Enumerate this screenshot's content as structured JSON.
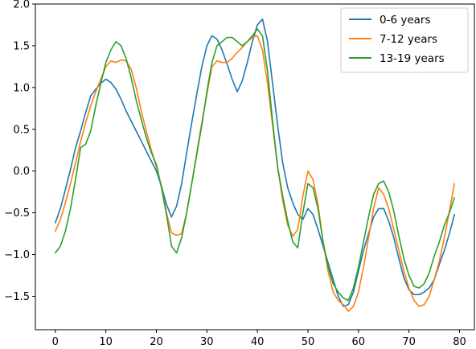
{
  "chart_data": {
    "type": "line",
    "title": "",
    "xlabel": "",
    "ylabel": "",
    "xlim": [
      -3.95,
      82.95
    ],
    "ylim": [
      -1.9,
      2.0
    ],
    "xticks": [
      0,
      10,
      20,
      30,
      40,
      50,
      60,
      70,
      80
    ],
    "yticks": [
      -1.5,
      -1.0,
      -0.5,
      0.0,
      0.5,
      1.0,
      1.5,
      2.0
    ],
    "xtick_labels": [
      "0",
      "10",
      "20",
      "30",
      "40",
      "50",
      "60",
      "70",
      "80"
    ],
    "ytick_labels": [
      "−1.5",
      "−1.0",
      "−0.5",
      "0.0",
      "0.5",
      "1.0",
      "1.5",
      "2.0"
    ],
    "grid": false,
    "legend_position": "top-right",
    "x": [
      0,
      1,
      2,
      3,
      4,
      5,
      6,
      7,
      8,
      9,
      10,
      11,
      12,
      13,
      14,
      15,
      16,
      17,
      18,
      19,
      20,
      21,
      22,
      23,
      24,
      25,
      26,
      27,
      28,
      29,
      30,
      31,
      32,
      33,
      34,
      35,
      36,
      37,
      38,
      39,
      40,
      41,
      42,
      43,
      44,
      45,
      46,
      47,
      48,
      49,
      50,
      51,
      52,
      53,
      54,
      55,
      56,
      57,
      58,
      59,
      60,
      61,
      62,
      63,
      64,
      65,
      66,
      67,
      68,
      69,
      70,
      71,
      72,
      73,
      74,
      75,
      76,
      77,
      78,
      79
    ],
    "series": [
      {
        "name": "0-6 years",
        "color": "#1f77b4",
        "values": [
          -0.62,
          -0.45,
          -0.22,
          0.02,
          0.28,
          0.48,
          0.7,
          0.9,
          0.98,
          1.05,
          1.1,
          1.06,
          0.98,
          0.86,
          0.72,
          0.6,
          0.48,
          0.36,
          0.24,
          0.12,
          0.0,
          -0.18,
          -0.4,
          -0.55,
          -0.42,
          -0.15,
          0.22,
          0.58,
          0.92,
          1.25,
          1.5,
          1.62,
          1.58,
          1.45,
          1.28,
          1.1,
          0.95,
          1.08,
          1.3,
          1.55,
          1.75,
          1.82,
          1.55,
          1.05,
          0.55,
          0.1,
          -0.2,
          -0.38,
          -0.52,
          -0.58,
          -0.45,
          -0.52,
          -0.7,
          -0.9,
          -1.1,
          -1.3,
          -1.5,
          -1.62,
          -1.6,
          -1.45,
          -1.2,
          -0.95,
          -0.75,
          -0.55,
          -0.45,
          -0.45,
          -0.6,
          -0.8,
          -1.05,
          -1.28,
          -1.42,
          -1.48,
          -1.48,
          -1.45,
          -1.4,
          -1.3,
          -1.12,
          -0.95,
          -0.75,
          -0.52
        ]
      },
      {
        "name": "7-12 years",
        "color": "#ff7f0e",
        "values": [
          -0.72,
          -0.58,
          -0.38,
          -0.15,
          0.1,
          0.35,
          0.58,
          0.78,
          0.95,
          1.1,
          1.25,
          1.32,
          1.3,
          1.33,
          1.32,
          1.22,
          1.0,
          0.72,
          0.48,
          0.25,
          0.05,
          -0.18,
          -0.5,
          -0.74,
          -0.77,
          -0.75,
          -0.5,
          -0.15,
          0.22,
          0.58,
          0.92,
          1.25,
          1.32,
          1.3,
          1.3,
          1.35,
          1.42,
          1.48,
          1.55,
          1.6,
          1.62,
          1.45,
          1.05,
          0.55,
          0.05,
          -0.35,
          -0.65,
          -0.78,
          -0.7,
          -0.3,
          0.0,
          -0.1,
          -0.4,
          -0.85,
          -1.2,
          -1.45,
          -1.55,
          -1.6,
          -1.68,
          -1.62,
          -1.45,
          -1.15,
          -0.8,
          -0.45,
          -0.2,
          -0.28,
          -0.45,
          -0.7,
          -0.95,
          -1.2,
          -1.4,
          -1.55,
          -1.62,
          -1.6,
          -1.5,
          -1.3,
          -1.08,
          -0.8,
          -0.48,
          -0.15
        ]
      },
      {
        "name": "13-19 years",
        "color": "#2ca02c",
        "values": [
          -0.98,
          -0.9,
          -0.72,
          -0.45,
          -0.1,
          0.28,
          0.32,
          0.48,
          0.78,
          1.05,
          1.3,
          1.45,
          1.55,
          1.5,
          1.35,
          1.12,
          0.85,
          0.62,
          0.4,
          0.22,
          0.08,
          -0.2,
          -0.52,
          -0.9,
          -0.98,
          -0.8,
          -0.5,
          -0.15,
          0.2,
          0.55,
          0.95,
          1.3,
          1.5,
          1.55,
          1.6,
          1.6,
          1.55,
          1.5,
          1.55,
          1.62,
          1.7,
          1.62,
          1.2,
          0.6,
          0.05,
          -0.3,
          -0.6,
          -0.85,
          -0.92,
          -0.5,
          -0.15,
          -0.2,
          -0.45,
          -0.85,
          -1.15,
          -1.35,
          -1.45,
          -1.52,
          -1.55,
          -1.4,
          -1.15,
          -0.85,
          -0.55,
          -0.28,
          -0.15,
          -0.12,
          -0.25,
          -0.48,
          -0.78,
          -1.05,
          -1.25,
          -1.38,
          -1.4,
          -1.35,
          -1.22,
          -1.02,
          -0.85,
          -0.65,
          -0.5,
          -0.32
        ]
      }
    ]
  }
}
